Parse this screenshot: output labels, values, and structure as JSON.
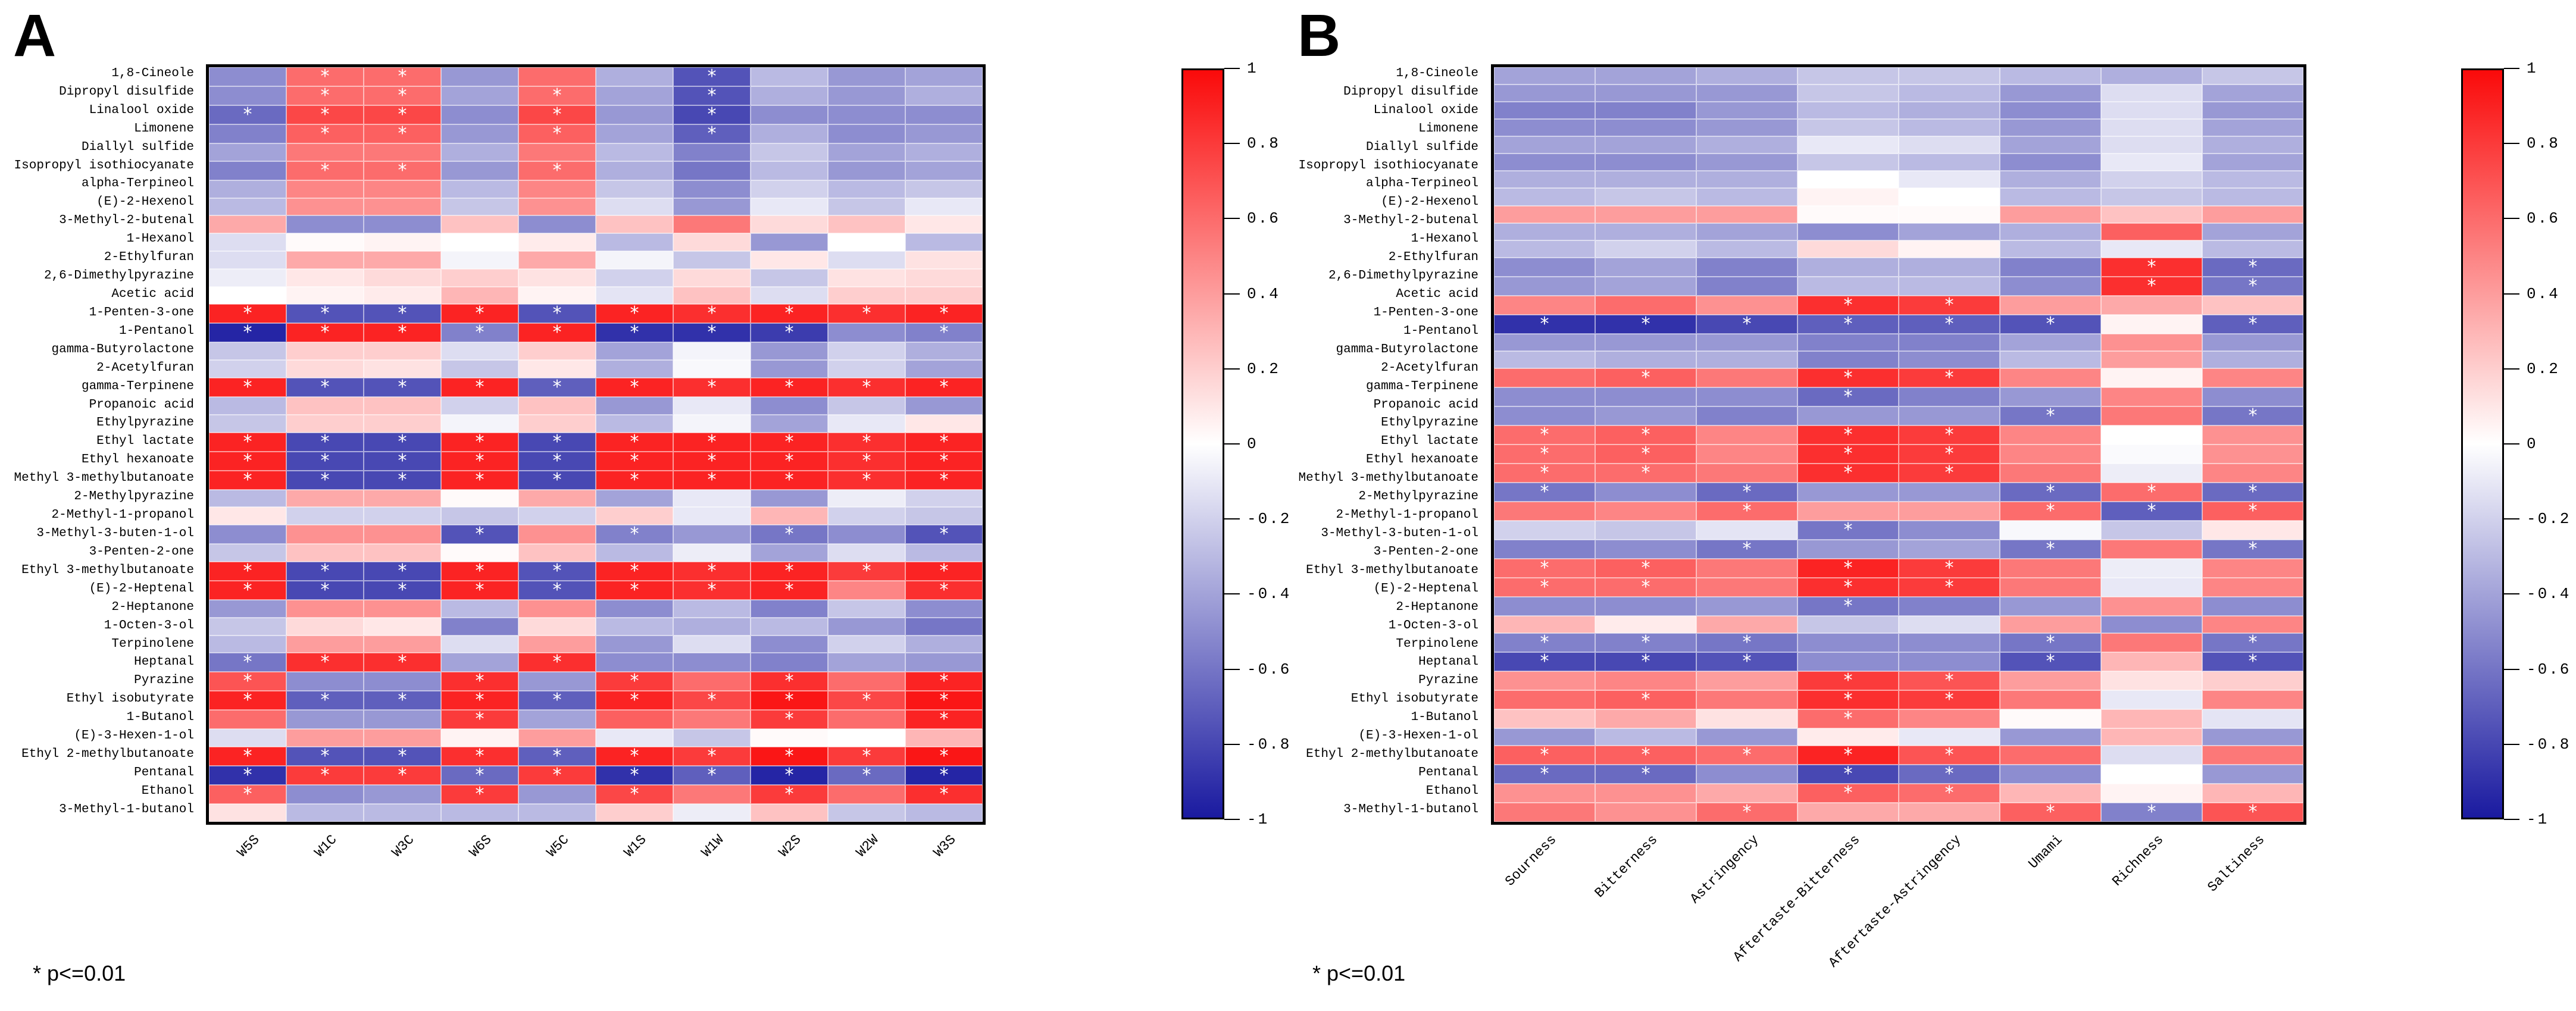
{
  "figure": {
    "panel_a_letter": "A",
    "panel_b_letter": "B",
    "footnote_a": "* p<=0.01",
    "footnote_b": "* p<=0.01"
  },
  "colors": {
    "max_color": "#FA0A0A",
    "mid_color": "#FFFFFF",
    "min_color": "#1A1AA0",
    "frame": "#000000",
    "grid_line": "rgba(255,255,255,0.55)",
    "asterisk": "#FFFFFF"
  },
  "chart_data": [
    {
      "panel": "A",
      "type": "heatmap",
      "legend_position": "right colorbar",
      "colormap": {
        "min": -1,
        "max": 1,
        "min_color": "#1A1AA0",
        "mid_color": "#FFFFFF",
        "max_color": "#FA0A0A"
      },
      "colorbar_ticks": [
        "1",
        "0.8",
        "0.6",
        "0.4",
        "0.2",
        "0",
        "-0.2",
        "-0.4",
        "-0.6",
        "-0.8",
        "-1"
      ],
      "significance_marker": "*",
      "significance_note": "* p<=0.01",
      "columns": [
        "W5S",
        "W1C",
        "W3C",
        "W6S",
        "W5C",
        "W1S",
        "W1W",
        "W2S",
        "W2W",
        "W3S"
      ],
      "rows": [
        "1,8-Cineole",
        "Dipropyl disulfide",
        "Linalool oxide",
        "Limonene",
        "Diallyl sulfide",
        "Isopropyl isothiocyanate",
        "alpha-Terpineol",
        "(E)-2-Hexenol",
        "3-Methyl-2-butenal",
        "1-Hexanol",
        "2-Ethylfuran",
        "2,6-Dimethylpyrazine",
        "Acetic acid",
        "1-Penten-3-one",
        "1-Pentanol",
        "gamma-Butyrolactone",
        "2-Acetylfuran",
        "gamma-Terpinene",
        "Propanoic acid",
        "Ethylpyrazine",
        "Ethyl lactate",
        "Ethyl hexanoate",
        "Methyl 3-methylbutanoate",
        "2-Methylpyrazine",
        "2-Methyl-1-propanol",
        "3-Methyl-3-buten-1-ol",
        "3-Penten-2-one",
        "Ethyl 3-methylbutanoate",
        "(E)-2-Heptenal",
        "2-Heptanone",
        "1-Octen-3-ol",
        "Terpinolene",
        "Heptanal",
        "Pyrazine",
        "Ethyl isobutyrate",
        "1-Butanol",
        "(E)-3-Hexen-1-ol",
        "Ethyl 2-methylbutanoate",
        "Pentanal",
        "Ethanol",
        "3-Methyl-1-butanol"
      ],
      "values": [
        [
          -0.5,
          "0.6*",
          "0.6*",
          -0.45,
          0.6,
          -0.35,
          "-0.75*",
          -0.3,
          -0.45,
          -0.4
        ],
        [
          -0.5,
          "0.6*",
          "0.6*",
          -0.4,
          "0.6*",
          -0.4,
          "-0.75*",
          -0.35,
          -0.45,
          -0.35
        ],
        [
          "-0.65*",
          "0.75*",
          "0.75*",
          -0.5,
          "0.75*",
          -0.45,
          "-0.8*",
          -0.5,
          -0.5,
          -0.5
        ],
        [
          -0.55,
          "0.65*",
          "0.65*",
          -0.45,
          "0.65*",
          -0.4,
          "-0.7*",
          -0.35,
          -0.5,
          -0.45
        ],
        [
          -0.4,
          0.55,
          0.55,
          -0.35,
          0.55,
          -0.3,
          -0.55,
          -0.25,
          -0.4,
          -0.35
        ],
        [
          -0.55,
          "0.6*",
          "0.6*",
          -0.45,
          "0.6*",
          -0.35,
          -0.6,
          -0.3,
          -0.45,
          -0.4
        ],
        [
          -0.35,
          0.5,
          0.5,
          -0.3,
          0.5,
          -0.25,
          -0.5,
          -0.2,
          -0.3,
          -0.25
        ],
        [
          -0.3,
          0.45,
          0.45,
          -0.25,
          0.45,
          -0.15,
          -0.45,
          -0.1,
          -0.25,
          -0.1
        ],
        [
          0.35,
          -0.5,
          -0.5,
          0.25,
          -0.5,
          0.25,
          0.55,
          0.15,
          0.25,
          0.1
        ],
        [
          -0.15,
          0.02,
          0.05,
          0,
          0.08,
          -0.3,
          0.15,
          -0.45,
          0,
          -0.3
        ],
        [
          -0.15,
          0.35,
          0.35,
          -0.05,
          0.35,
          -0.05,
          -0.25,
          0.1,
          -0.15,
          0.12
        ],
        [
          -0.08,
          0.1,
          0.15,
          0.2,
          0.12,
          -0.2,
          0.15,
          -0.25,
          0.12,
          0.15
        ],
        [
          0,
          0.05,
          0.08,
          0.3,
          0.05,
          -0.12,
          0.25,
          -0.15,
          0.2,
          0.2
        ],
        [
          "0.9*",
          "-0.75*",
          "-0.75*",
          "0.9*",
          "-0.75*",
          "0.9*",
          "0.85*",
          "0.9*",
          "0.85*",
          "0.9*"
        ],
        [
          "-0.95*",
          "0.9*",
          "0.9*",
          "-0.55*",
          "0.9*",
          "-0.9*",
          "-0.9*",
          "-0.85*",
          -0.5,
          "-0.55*"
        ],
        [
          -0.25,
          0.2,
          0.2,
          -0.15,
          0.2,
          -0.4,
          -0.05,
          -0.45,
          -0.2,
          -0.35
        ],
        [
          -0.2,
          0.15,
          0.12,
          -0.25,
          0.1,
          -0.35,
          -0.03,
          -0.45,
          -0.2,
          -0.4
        ],
        [
          "0.9*",
          "-0.75*",
          "-0.75*",
          "0.9*",
          "-0.7*",
          "0.9*",
          "0.85*",
          "0.9*",
          "0.85*",
          "0.9*"
        ],
        [
          -0.3,
          0.25,
          0.25,
          -0.2,
          0.25,
          -0.45,
          -0.1,
          -0.5,
          -0.25,
          -0.45
        ],
        [
          -0.25,
          0.2,
          0.2,
          -0.05,
          0.2,
          -0.3,
          -0.05,
          -0.4,
          -0.1,
          0.1
        ],
        [
          "0.9*",
          "-0.8*",
          "-0.8*",
          "0.9*",
          "-0.8*",
          "0.9*",
          "0.9*",
          "0.9*",
          "0.85*",
          "0.9*"
        ],
        [
          "0.9*",
          "-0.8*",
          "-0.8*",
          "0.9*",
          "-0.8*",
          "0.9*",
          "0.9*",
          "0.9*",
          "0.85*",
          "0.9*"
        ],
        [
          "0.9*",
          "-0.8*",
          "-0.8*",
          "0.9*",
          "-0.8*",
          "0.9*",
          "0.9*",
          "0.9*",
          "0.85*",
          "0.9*"
        ],
        [
          -0.3,
          0.35,
          0.35,
          0.02,
          0.35,
          -0.4,
          -0.1,
          -0.45,
          -0.08,
          -0.2
        ],
        [
          0.1,
          -0.2,
          -0.2,
          -0.25,
          -0.2,
          0.2,
          -0.1,
          0.3,
          -0.2,
          -0.25
        ],
        [
          -0.5,
          0.45,
          0.45,
          "-0.75*",
          0.45,
          "-0.55*",
          -0.45,
          "-0.6*",
          -0.5,
          "-0.75*"
        ],
        [
          -0.25,
          0.25,
          0.25,
          0.02,
          0.25,
          -0.3,
          -0.08,
          -0.4,
          -0.15,
          -0.3
        ],
        [
          "0.9*",
          "-0.8*",
          "-0.8*",
          "0.9*",
          "-0.75*",
          "0.9*",
          "0.85*",
          "0.9*",
          "0.8*",
          "0.9*"
        ],
        [
          "0.9*",
          "-0.8*",
          "-0.8*",
          "0.9*",
          "-0.75*",
          "0.9*",
          "0.85*",
          "0.9*",
          0.5,
          "0.85*"
        ],
        [
          -0.45,
          0.45,
          0.45,
          -0.3,
          0.45,
          -0.5,
          -0.3,
          -0.55,
          -0.25,
          -0.5
        ],
        [
          -0.25,
          0.15,
          0.1,
          -0.55,
          0.15,
          -0.3,
          -0.35,
          -0.3,
          -0.45,
          -0.6
        ],
        [
          -0.3,
          0.4,
          0.4,
          -0.15,
          0.4,
          -0.45,
          -0.15,
          -0.5,
          -0.2,
          -0.35
        ],
        [
          "-0.6*",
          "0.85*",
          "0.85*",
          -0.4,
          "0.85*",
          -0.5,
          -0.5,
          -0.55,
          -0.4,
          -0.45
        ],
        [
          "0.7*",
          -0.5,
          -0.5,
          "0.85*",
          -0.45,
          "0.8*",
          0.6,
          "0.85*",
          0.6,
          "0.9*"
        ],
        [
          "0.9*",
          "-0.7*",
          "-0.7*",
          "0.9*",
          "-0.7*",
          "0.9*",
          "0.75*",
          "0.95*",
          "0.75*",
          "0.95*"
        ],
        [
          0.6,
          -0.45,
          -0.45,
          "0.8*",
          -0.4,
          0.65,
          0.55,
          "0.8*",
          0.6,
          "0.9*"
        ],
        [
          -0.15,
          0.4,
          0.4,
          0.05,
          0.4,
          -0.1,
          -0.25,
          0.02,
          0,
          0.3
        ],
        [
          "0.9*",
          "-0.75*",
          "-0.75*",
          "0.85*",
          "-0.7*",
          "0.9*",
          "0.8*",
          "0.95*",
          "0.8*",
          "0.95*"
        ],
        [
          "-0.9*",
          "0.8*",
          "0.8*",
          "-0.65*",
          "0.8*",
          "-0.9*",
          "-0.7*",
          "-0.95*",
          "-0.65*",
          "-0.95*"
        ],
        [
          "0.65*",
          -0.5,
          -0.45,
          "0.8*",
          -0.45,
          "0.75*",
          0.55,
          "0.8*",
          0.6,
          "0.85*"
        ],
        [
          0.12,
          -0.3,
          -0.3,
          -0.3,
          -0.3,
          0.2,
          -0.08,
          0.25,
          -0.25,
          -0.3
        ]
      ]
    },
    {
      "panel": "B",
      "type": "heatmap",
      "legend_position": "right colorbar",
      "colormap": {
        "min": -1,
        "max": 1,
        "min_color": "#1A1AA0",
        "mid_color": "#FFFFFF",
        "max_color": "#FA0A0A"
      },
      "colorbar_ticks": [
        "1",
        "0.8",
        "0.6",
        "0.4",
        "0.2",
        "0",
        "-0.2",
        "-0.4",
        "-0.6",
        "-0.8",
        "-1"
      ],
      "significance_marker": "*",
      "significance_note": "* p<=0.01",
      "columns": [
        "Sourness",
        "Bitterness",
        "Astringency",
        "Aftertaste-Bitterness",
        "Aftertaste-Astringency",
        "Umami",
        "Richness",
        "Saltiness"
      ],
      "rows": [
        "1,8-Cineole",
        "Dipropyl disulfide",
        "Linalool oxide",
        "Limonene",
        "Diallyl sulfide",
        "Isopropyl isothiocyanate",
        "alpha-Terpineol",
        "(E)-2-Hexenol",
        "3-Methyl-2-butenal",
        "1-Hexanol",
        "2-Ethylfuran",
        "2,6-Dimethylpyrazine",
        "Acetic acid",
        "1-Penten-3-one",
        "1-Pentanol",
        "gamma-Butyrolactone",
        "2-Acetylfuran",
        "gamma-Terpinene",
        "Propanoic acid",
        "Ethylpyrazine",
        "Ethyl lactate",
        "Ethyl hexanoate",
        "Methyl 3-methylbutanoate",
        "2-Methylpyrazine",
        "2-Methyl-1-propanol",
        "3-Methyl-3-buten-1-ol",
        "3-Penten-2-one",
        "Ethyl 3-methylbutanoate",
        "(E)-2-Heptenal",
        "2-Heptanone",
        "1-Octen-3-ol",
        "Terpinolene",
        "Heptanal",
        "Pyrazine",
        "Ethyl isobutyrate",
        "1-Butanol",
        "(E)-3-Hexen-1-ol",
        "Ethyl 2-methylbutanoate",
        "Pentanal",
        "Ethanol",
        "3-Methyl-1-butanol"
      ],
      "values": [
        [
          -0.4,
          -0.4,
          -0.35,
          -0.25,
          -0.25,
          -0.3,
          -0.35,
          -0.25
        ],
        [
          -0.45,
          -0.45,
          -0.45,
          -0.25,
          -0.3,
          -0.45,
          -0.15,
          -0.4
        ],
        [
          -0.55,
          -0.55,
          -0.45,
          -0.3,
          -0.35,
          -0.5,
          -0.15,
          -0.45
        ],
        [
          -0.5,
          -0.5,
          -0.45,
          -0.25,
          -0.3,
          -0.45,
          -0.15,
          -0.4
        ],
        [
          -0.4,
          -0.4,
          -0.35,
          -0.1,
          -0.15,
          -0.4,
          -0.15,
          -0.35
        ],
        [
          -0.5,
          -0.5,
          -0.45,
          -0.25,
          -0.3,
          -0.5,
          -0.1,
          -0.4
        ],
        [
          -0.35,
          -0.35,
          -0.35,
          0,
          -0.1,
          -0.35,
          -0.2,
          -0.3
        ],
        [
          -0.3,
          -0.25,
          -0.3,
          0.05,
          0,
          -0.3,
          -0.25,
          -0.3
        ],
        [
          0.4,
          0.4,
          0.4,
          0.02,
          0.02,
          0.4,
          0.25,
          0.4
        ],
        [
          -0.35,
          -0.35,
          -0.4,
          -0.5,
          -0.4,
          -0.35,
          0.65,
          -0.4
        ],
        [
          -0.3,
          -0.2,
          -0.3,
          0.15,
          0.05,
          -0.3,
          -0.1,
          -0.3
        ],
        [
          -0.5,
          -0.4,
          -0.55,
          -0.35,
          -0.35,
          -0.55,
          "0.85*",
          "-0.65*"
        ],
        [
          -0.45,
          -0.4,
          -0.55,
          -0.3,
          -0.3,
          -0.5,
          "0.85*",
          "-0.6*"
        ],
        [
          0.5,
          0.6,
          0.45,
          "0.85*",
          "0.8*",
          0.4,
          0.35,
          0.25
        ],
        [
          "-0.9*",
          "-0.9*",
          "-0.8*",
          "-0.7*",
          "-0.7*",
          "-0.75*",
          0.05,
          "-0.7*"
        ],
        [
          -0.45,
          -0.45,
          -0.45,
          -0.55,
          -0.55,
          -0.4,
          0.45,
          -0.45
        ],
        [
          -0.3,
          -0.35,
          -0.35,
          -0.55,
          -0.5,
          -0.3,
          0.4,
          -0.35
        ],
        [
          0.6,
          "0.65*",
          0.55,
          "0.85*",
          "0.8*",
          0.5,
          0.05,
          0.5
        ],
        [
          -0.5,
          -0.5,
          -0.5,
          "-0.65*",
          -0.55,
          -0.45,
          0.5,
          -0.5
        ],
        [
          -0.5,
          -0.45,
          -0.55,
          -0.45,
          -0.45,
          "-0.6*",
          0.55,
          "-0.6*"
        ],
        [
          "0.6*",
          "0.65*",
          0.5,
          "0.85*",
          "0.8*",
          0.5,
          0,
          0.45
        ],
        [
          "0.6*",
          "0.65*",
          0.5,
          "0.85*",
          "0.8*",
          0.5,
          -0.02,
          0.45
        ],
        [
          "0.6*",
          "0.6*",
          0.55,
          "0.85*",
          "0.8*",
          0.55,
          -0.08,
          0.5
        ],
        [
          "-0.6*",
          -0.5,
          "-0.65*",
          -0.45,
          -0.45,
          "-0.65*",
          "0.6*",
          "-0.65*"
        ],
        [
          0.55,
          0.5,
          "0.6*",
          0.4,
          0.4,
          "0.6*",
          "-0.7*",
          "0.65*"
        ],
        [
          -0.2,
          -0.25,
          -0.12,
          "-0.6*",
          -0.5,
          -0.03,
          -0.25,
          0.1
        ],
        [
          -0.55,
          -0.5,
          "-0.6*",
          -0.45,
          -0.4,
          "-0.6*",
          0.55,
          "-0.6*"
        ],
        [
          "0.6*",
          "0.65*",
          0.55,
          "0.9*",
          "0.8*",
          0.55,
          -0.08,
          0.5
        ],
        [
          "0.6*",
          "0.6*",
          0.55,
          "0.85*",
          "0.8*",
          0.55,
          -0.1,
          0.5
        ],
        [
          -0.5,
          -0.5,
          -0.45,
          "-0.6*",
          -0.55,
          -0.45,
          0.45,
          -0.5
        ],
        [
          0.3,
          0.08,
          0.35,
          -0.25,
          -0.15,
          0.4,
          -0.5,
          0.5
        ],
        [
          "-0.55*",
          "-0.55*",
          "-0.6*",
          -0.5,
          -0.5,
          "-0.6*",
          0.55,
          "-0.6*"
        ],
        [
          "-0.8*",
          "-0.8*",
          "-0.75*",
          -0.5,
          -0.5,
          "-0.75*",
          0.3,
          "-0.75*"
        ],
        [
          0.45,
          0.5,
          0.4,
          "0.8*",
          "0.7*",
          0.4,
          0.12,
          0.2
        ],
        [
          0.6,
          "0.65*",
          0.55,
          "0.85*",
          "0.8*",
          0.55,
          -0.1,
          0.5
        ],
        [
          0.25,
          0.35,
          0.12,
          "0.6*",
          0.5,
          0.02,
          0.3,
          -0.12
        ],
        [
          -0.45,
          -0.3,
          -0.45,
          0.08,
          -0.1,
          -0.45,
          0.3,
          -0.45
        ],
        [
          "0.65*",
          "0.65*",
          "0.6*",
          "0.9*",
          "0.7*",
          0.6,
          -0.15,
          0.55
        ],
        [
          "-0.65*",
          "-0.65*",
          -0.5,
          "-0.8*",
          "-0.65*",
          -0.5,
          0,
          -0.45
        ],
        [
          0.45,
          0.45,
          0.35,
          "0.65*",
          "0.6*",
          0.3,
          0.05,
          0.3
        ],
        [
          0.55,
          0.45,
          "0.6*",
          0.35,
          0.35,
          "0.65*",
          "-0.55*",
          "0.7*"
        ]
      ]
    }
  ]
}
